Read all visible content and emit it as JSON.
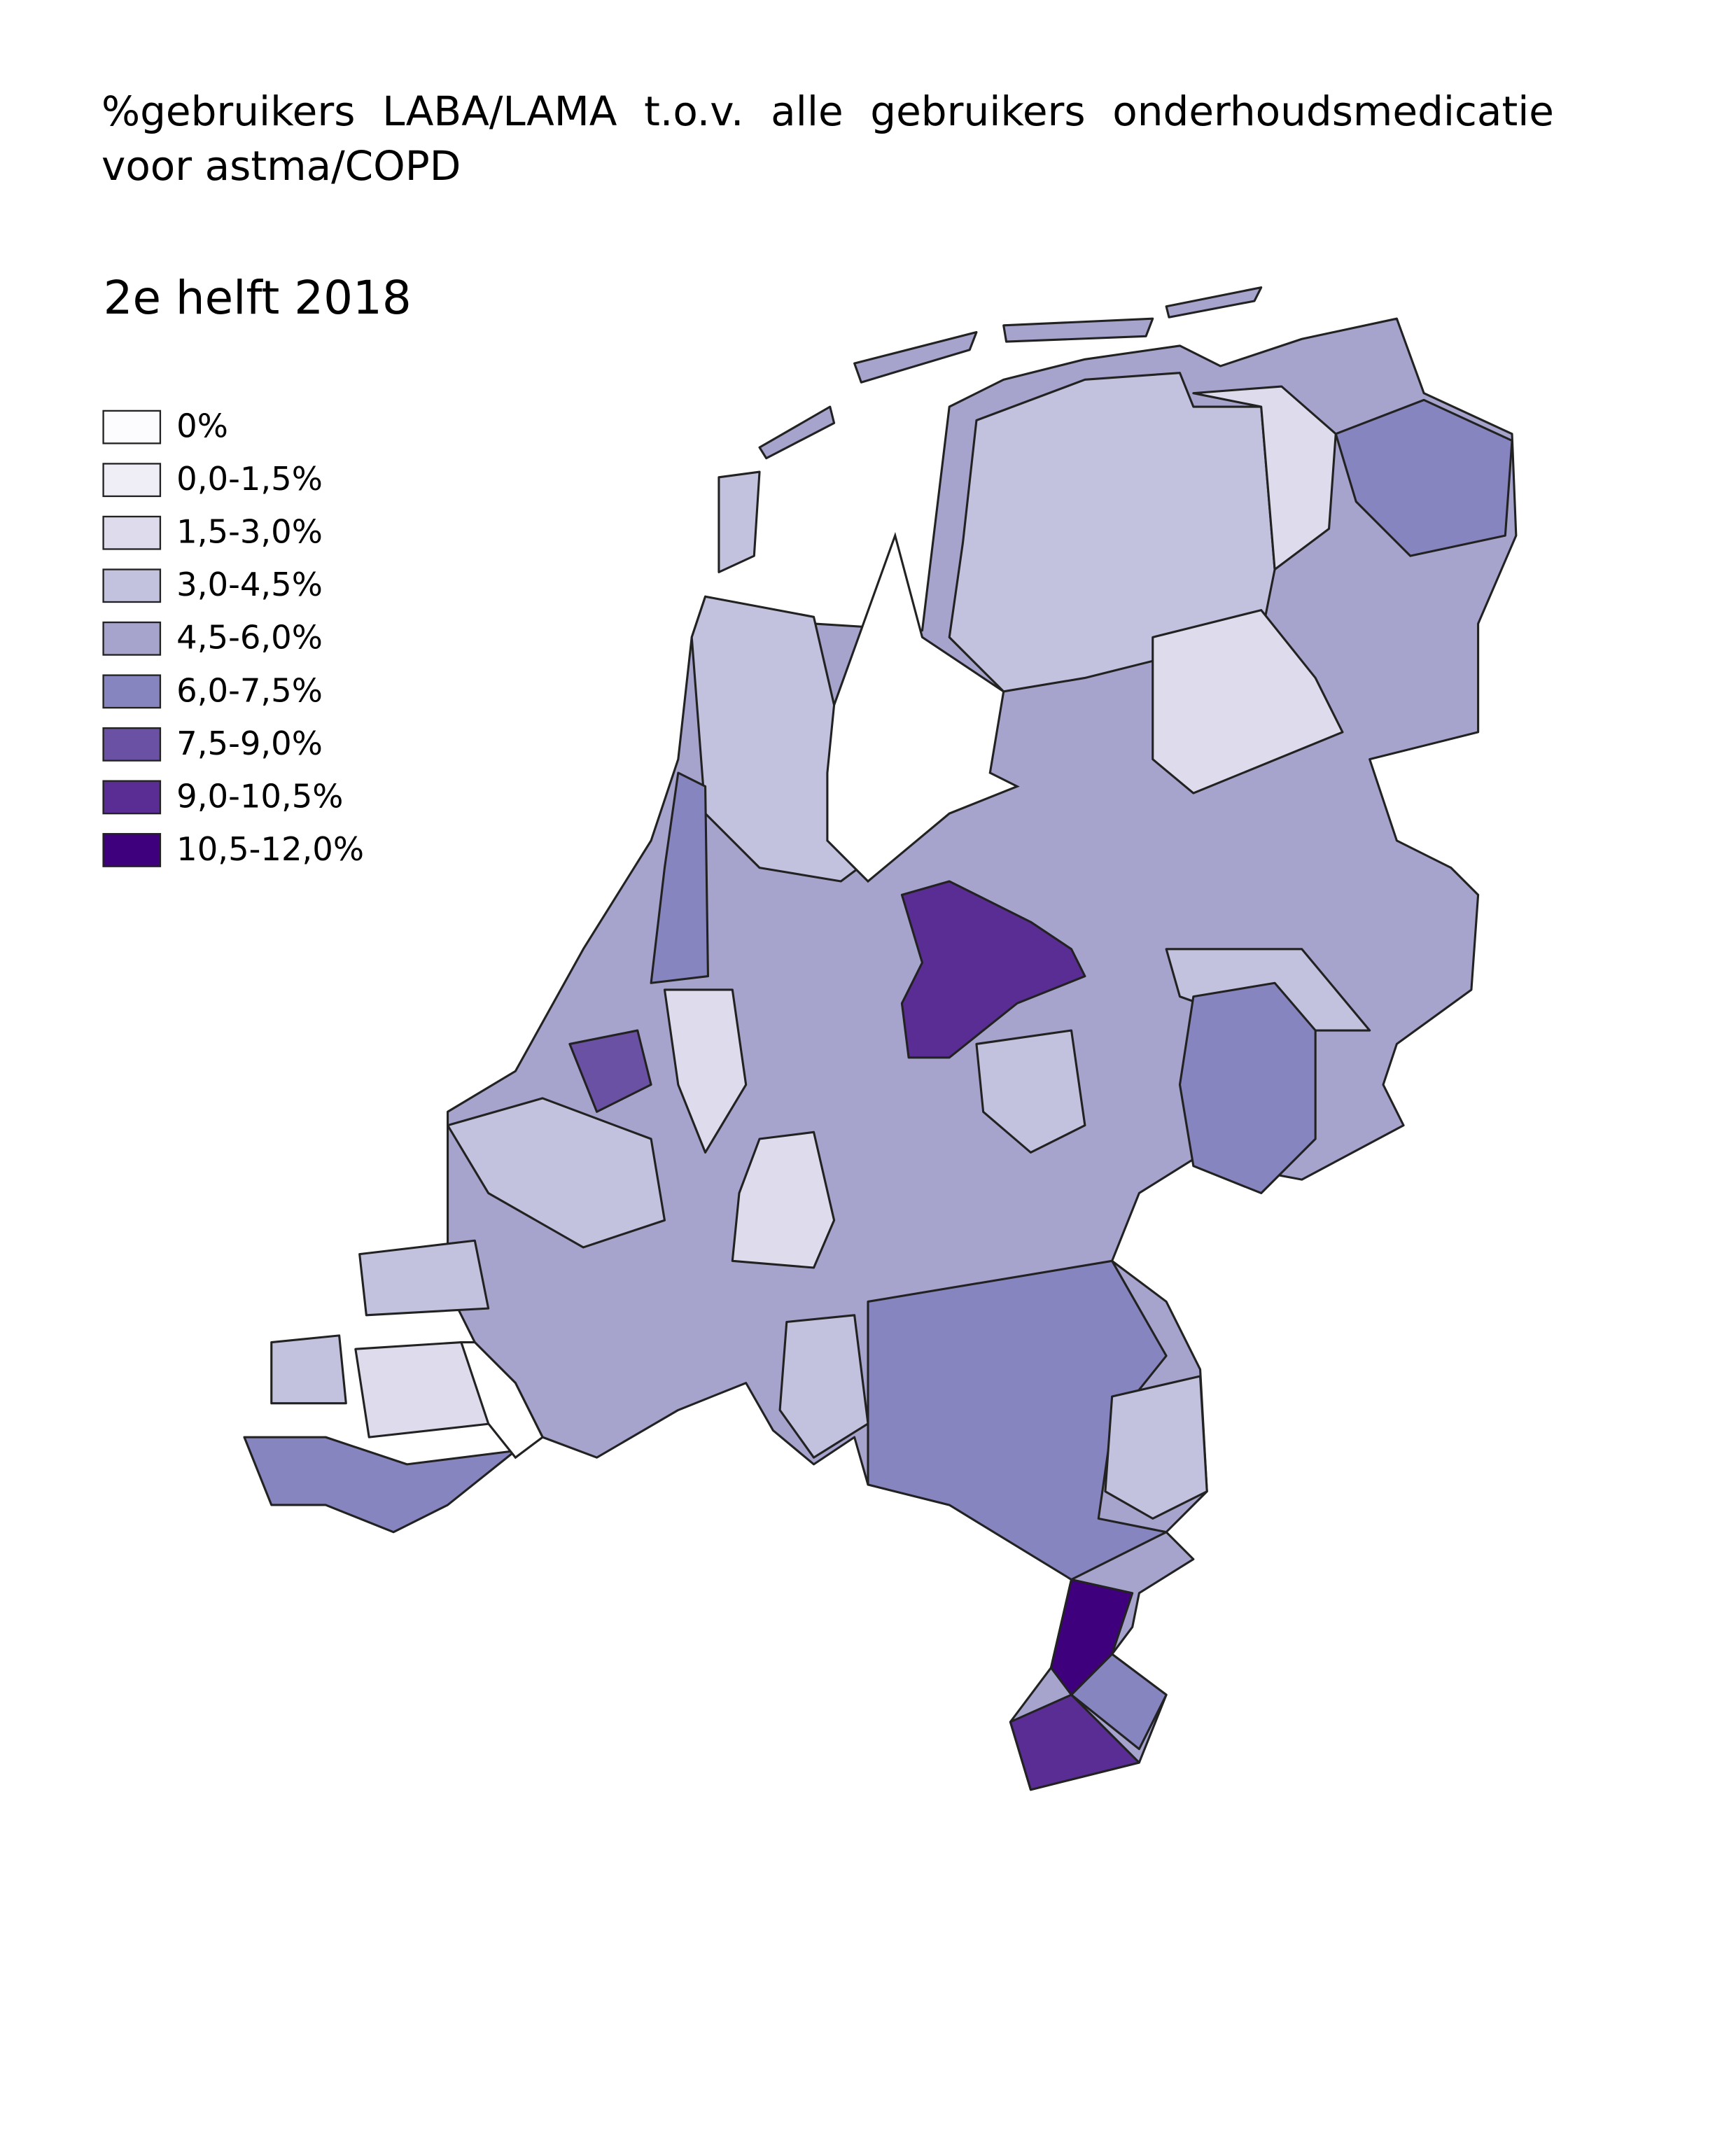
{
  "title": "%gebruikers LABA/LAMA t.o.v. alle gebruikers onderhoudsmedicatie voor astma/COPD",
  "subtitle": "2e helft 2018",
  "legend": [
    {
      "label": "0%",
      "color": "#fcfbfd"
    },
    {
      "label": "0,0-1,5%",
      "color": "#efedf5"
    },
    {
      "label": "1,5-3,0%",
      "color": "#dedcec"
    },
    {
      "label": "3,0-4,5%",
      "color": "#c2c2df"
    },
    {
      "label": "4,5-6,0%",
      "color": "#a6a4cd"
    },
    {
      "label": "6,0-7,5%",
      "color": "#8785bf"
    },
    {
      "label": "7,5-9,0%",
      "color": "#6a51a3"
    },
    {
      "label": "9,0-10,5%",
      "color": "#5a2d94"
    },
    {
      "label": "10,5-12,0%",
      "color": "#3f007d"
    }
  ]
}
